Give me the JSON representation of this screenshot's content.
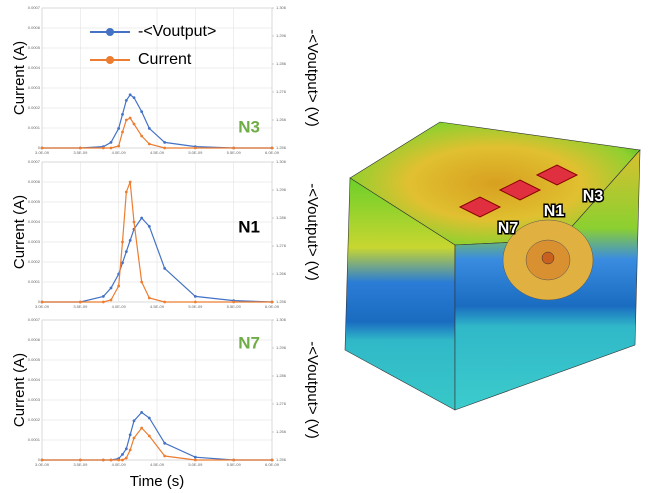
{
  "chart_data": [
    {
      "type": "line",
      "annotation": "N3",
      "annotation_color": "#70ad47",
      "ylabel": "Current (A)",
      "y2label": "-<Voutput> (V)",
      "x": [
        3e-09,
        3.5e-09,
        3.8e-09,
        3.9e-09,
        4e-09,
        4.05e-09,
        4.1e-09,
        4.15e-09,
        4.2e-09,
        4.3e-09,
        4.4e-09,
        4.6e-09,
        5e-09,
        5.5e-09,
        6e-09
      ],
      "series": [
        {
          "name": "-<Voutput>",
          "color": "#4472c4",
          "axis": "y2",
          "values": [
            1.256,
            1.256,
            1.2565,
            1.258,
            1.263,
            1.268,
            1.273,
            1.275,
            1.274,
            1.269,
            1.263,
            1.258,
            1.2565,
            1.256,
            1.256
          ]
        },
        {
          "name": "Current",
          "color": "#ed7d31",
          "values": [
            0,
            0,
            0,
            0,
            1e-05,
            8e-05,
            0.00014,
            0.00015,
            0.00012,
            6e-05,
            2e-05,
            0,
            0,
            0,
            0
          ]
        }
      ],
      "xlim": [
        3e-09,
        6e-09
      ],
      "xticks": [
        {
          "value": 3e-09,
          "label": "3.0E-09"
        },
        {
          "value": 3.5e-09,
          "label": "3.5E-09"
        },
        {
          "value": 4e-09,
          "label": "4.0E-09"
        },
        {
          "value": 4.5e-09,
          "label": "4.5E-09"
        },
        {
          "value": 5e-09,
          "label": "5.0E-09"
        },
        {
          "value": 5.5e-09,
          "label": "5.5E-09"
        },
        {
          "value": 6e-09,
          "label": "6.0E-09"
        }
      ],
      "ylim": [
        0,
        0.0007
      ],
      "yticks": [
        0,
        0.0001,
        0.0002,
        0.0003,
        0.0004,
        0.0005,
        0.0006,
        0.0007
      ],
      "y2lim": [
        1.256,
        1.306
      ],
      "y2ticks": [
        1.256,
        1.266,
        1.276,
        1.286,
        1.296,
        1.306
      ],
      "grid": true,
      "legend": "top-left"
    },
    {
      "type": "line",
      "annotation": "N1",
      "annotation_color": "#000000",
      "ylabel": "Current (A)",
      "y2label": "-<Voutput> (V)",
      "x": [
        3e-09,
        3.5e-09,
        3.8e-09,
        3.9e-09,
        4e-09,
        4.05e-09,
        4.1e-09,
        4.15e-09,
        4.2e-09,
        4.3e-09,
        4.4e-09,
        4.6e-09,
        5e-09,
        5.5e-09,
        6e-09
      ],
      "series": [
        {
          "name": "-<Voutput>",
          "color": "#4472c4",
          "axis": "y2",
          "values": [
            1.256,
            1.256,
            1.258,
            1.261,
            1.266,
            1.27,
            1.274,
            1.278,
            1.282,
            1.286,
            1.283,
            1.268,
            1.258,
            1.2565,
            1.256
          ]
        },
        {
          "name": "Current",
          "color": "#ed7d31",
          "values": [
            0,
            0,
            0,
            1e-05,
            8e-05,
            0.0003,
            0.00055,
            0.0006,
            0.0004,
            0.0001,
            2e-05,
            0,
            0,
            0,
            0
          ]
        }
      ],
      "xlim": [
        3e-09,
        6e-09
      ],
      "xticks": [
        {
          "value": 3e-09,
          "label": "3.0E-09"
        },
        {
          "value": 3.5e-09,
          "label": "3.5E-09"
        },
        {
          "value": 4e-09,
          "label": "4.0E-09"
        },
        {
          "value": 4.5e-09,
          "label": "4.5E-09"
        },
        {
          "value": 5e-09,
          "label": "5.0E-09"
        },
        {
          "value": 5.5e-09,
          "label": "5.5E-09"
        },
        {
          "value": 6e-09,
          "label": "6.0E-09"
        }
      ],
      "ylim": [
        0,
        0.0007
      ],
      "yticks": [
        0,
        0.0001,
        0.0002,
        0.0003,
        0.0004,
        0.0005,
        0.0006,
        0.0007
      ],
      "y2lim": [
        1.256,
        1.306
      ],
      "y2ticks": [
        1.256,
        1.266,
        1.276,
        1.286,
        1.296,
        1.306
      ],
      "grid": true
    },
    {
      "type": "line",
      "annotation": "N7",
      "annotation_color": "#70ad47",
      "ylabel": "Current (A)",
      "y2label": "-<Voutput> (V)",
      "xlabel": "Time (s)",
      "x": [
        3e-09,
        3.5e-09,
        3.8e-09,
        3.9e-09,
        4e-09,
        4.05e-09,
        4.1e-09,
        4.15e-09,
        4.2e-09,
        4.3e-09,
        4.4e-09,
        4.6e-09,
        5e-09,
        5.5e-09,
        6e-09
      ],
      "series": [
        {
          "name": "-<Voutput>",
          "color": "#4472c4",
          "axis": "y2",
          "values": [
            1.256,
            1.256,
            1.256,
            1.256,
            1.2565,
            1.258,
            1.26,
            1.265,
            1.27,
            1.273,
            1.271,
            1.262,
            1.257,
            1.256,
            1.256
          ]
        },
        {
          "name": "Current",
          "color": "#ed7d31",
          "values": [
            0,
            0,
            0,
            0,
            0,
            0,
            1e-05,
            5e-05,
            0.00011,
            0.00016,
            0.00012,
            2e-05,
            0,
            0,
            0
          ]
        }
      ],
      "xlim": [
        3e-09,
        6e-09
      ],
      "xticks": [
        {
          "value": 3e-09,
          "label": "3.0E-09"
        },
        {
          "value": 3.5e-09,
          "label": "3.5E-09"
        },
        {
          "value": 4e-09,
          "label": "4.0E-09"
        },
        {
          "value": 4.5e-09,
          "label": "4.5E-09"
        },
        {
          "value": 5e-09,
          "label": "5.0E-09"
        },
        {
          "value": 5.5e-09,
          "label": "5.5E-09"
        },
        {
          "value": 6e-09,
          "label": "6.0E-09"
        }
      ],
      "ylim": [
        0,
        0.0007
      ],
      "yticks": [
        0,
        0.0001,
        0.0002,
        0.0003,
        0.0004,
        0.0005,
        0.0006,
        0.0007
      ],
      "y2lim": [
        1.256,
        1.306
      ],
      "y2ticks": [
        1.256,
        1.266,
        1.276,
        1.286,
        1.296,
        1.306
      ],
      "grid": true
    }
  ],
  "render_labels": [
    "N7",
    "N1",
    "N3"
  ]
}
